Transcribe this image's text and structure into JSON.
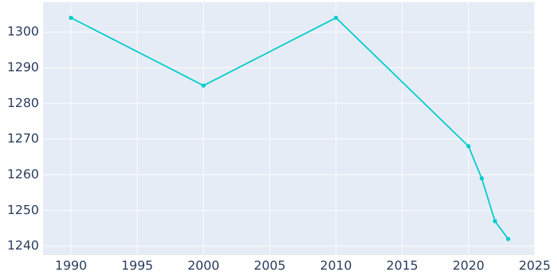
{
  "chart_data": {
    "type": "line",
    "x": [
      1990,
      2000,
      2010,
      2020,
      2021,
      2022,
      2023
    ],
    "series": [
      {
        "color": "#00cccc",
        "values": [
          1304,
          1285,
          1304,
          1268,
          1259,
          1247,
          1242
        ]
      }
    ],
    "xlim": [
      1987.9,
      2025
    ],
    "ylim": [
      1237.5,
      1308.4
    ],
    "xticks": [
      1990,
      1995,
      2000,
      2005,
      2010,
      2015,
      2020,
      2025
    ],
    "yticks": [
      1240,
      1250,
      1260,
      1270,
      1280,
      1290,
      1300
    ],
    "grid": true,
    "background": "#e5ecf6"
  }
}
